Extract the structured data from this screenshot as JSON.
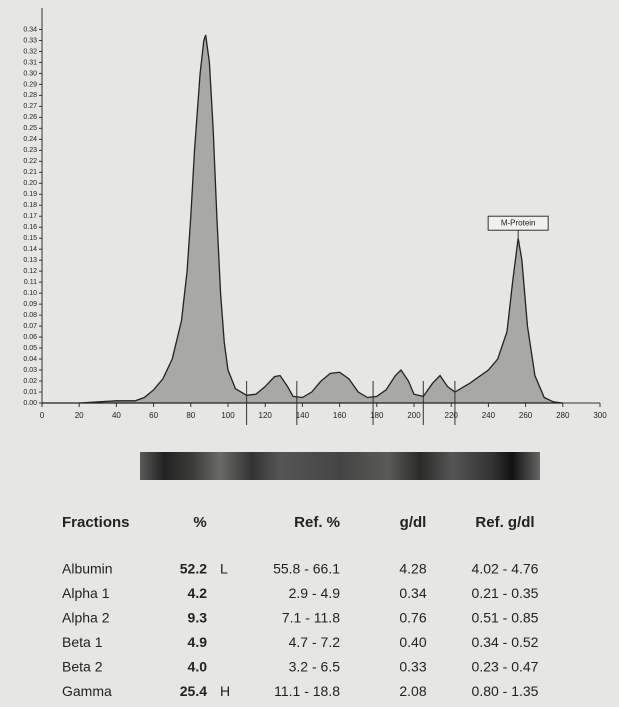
{
  "chart_data": {
    "type": "area",
    "x": [
      0,
      20,
      30,
      40,
      50,
      55,
      60,
      65,
      70,
      75,
      78,
      80,
      82,
      85,
      87,
      88,
      90,
      92,
      94,
      96,
      98,
      100,
      104,
      110,
      115,
      120,
      125,
      128,
      132,
      135,
      140,
      145,
      150,
      155,
      160,
      165,
      170,
      175,
      180,
      185,
      190,
      193,
      197,
      200,
      205,
      210,
      214,
      218,
      222,
      230,
      240,
      245,
      250,
      253,
      256,
      258,
      261,
      265,
      270,
      275,
      280
    ],
    "values": [
      0,
      0,
      0.001,
      0.002,
      0.002,
      0.005,
      0.012,
      0.022,
      0.04,
      0.075,
      0.12,
      0.17,
      0.23,
      0.3,
      0.33,
      0.335,
      0.31,
      0.25,
      0.17,
      0.1,
      0.055,
      0.03,
      0.013,
      0.007,
      0.008,
      0.015,
      0.024,
      0.025,
      0.015,
      0.006,
      0.005,
      0.01,
      0.02,
      0.027,
      0.028,
      0.022,
      0.01,
      0.005,
      0.006,
      0.012,
      0.025,
      0.03,
      0.02,
      0.008,
      0.006,
      0.018,
      0.025,
      0.015,
      0.01,
      0.018,
      0.03,
      0.04,
      0.065,
      0.11,
      0.15,
      0.13,
      0.07,
      0.025,
      0.005,
      0.001,
      0
    ],
    "color": "#a8a8a4",
    "boundaries": [
      110,
      137,
      178,
      205,
      222
    ],
    "annotation": {
      "text": "M-Protein",
      "x": 256,
      "y": 0.15
    },
    "xlim": [
      0,
      300
    ],
    "xticks": [
      0,
      20,
      40,
      60,
      80,
      100,
      120,
      140,
      160,
      180,
      200,
      220,
      240,
      260,
      280,
      300
    ],
    "ylim": [
      0,
      0.345
    ],
    "yticks": [
      {
        "value": 0,
        "label": "0.00"
      },
      0.01,
      0.02,
      0.03,
      0.04,
      0.05,
      0.06,
      0.07,
      0.08,
      0.09,
      {
        "value": 0.1,
        "label": "0.10"
      },
      0.11,
      0.12,
      0.13,
      0.14,
      0.15,
      0.16,
      0.17,
      0.18,
      0.19,
      {
        "value": 0.2,
        "label": "0.20"
      },
      0.21,
      0.22,
      0.23,
      0.24,
      0.25,
      0.26,
      0.27,
      0.28,
      0.29,
      {
        "value": 0.3,
        "label": "0.30"
      },
      0.31,
      0.32,
      0.33,
      0.34
    ]
  },
  "table": {
    "header": [
      "Fractions",
      "%",
      "Ref. %",
      "g/dl",
      "Ref. g/dl"
    ],
    "rows": [
      {
        "fraction": "Albumin",
        "percent": "52.2",
        "flag": "L",
        "ref_percent": "55.8 - 66.1",
        "gdl": "4.28",
        "ref_gdl": "4.02 - 4.76"
      },
      {
        "fraction": "Alpha 1",
        "percent": "4.2",
        "ref_percent": "2.9 - 4.9",
        "gdl": "0.34",
        "ref_gdl": "0.21 - 0.35"
      },
      {
        "fraction": "Alpha 2",
        "percent": "9.3",
        "ref_percent": "7.1 - 11.8",
        "gdl": "0.76",
        "ref_gdl": "0.51 - 0.85"
      },
      {
        "fraction": "Beta 1",
        "percent": "4.9",
        "ref_percent": "4.7 - 7.2",
        "gdl": "0.40",
        "ref_gdl": "0.34 - 0.52"
      },
      {
        "fraction": "Beta 2",
        "percent": "4.0",
        "ref_percent": "3.2 - 6.5",
        "gdl": "0.33",
        "ref_gdl": "0.23 - 0.47"
      },
      {
        "fraction": "Gamma",
        "percent": "25.4",
        "flag": "H",
        "ref_percent": "11.1 - 18.8",
        "gdl": "2.08",
        "ref_gdl": "0.80 - 1.35"
      }
    ]
  }
}
